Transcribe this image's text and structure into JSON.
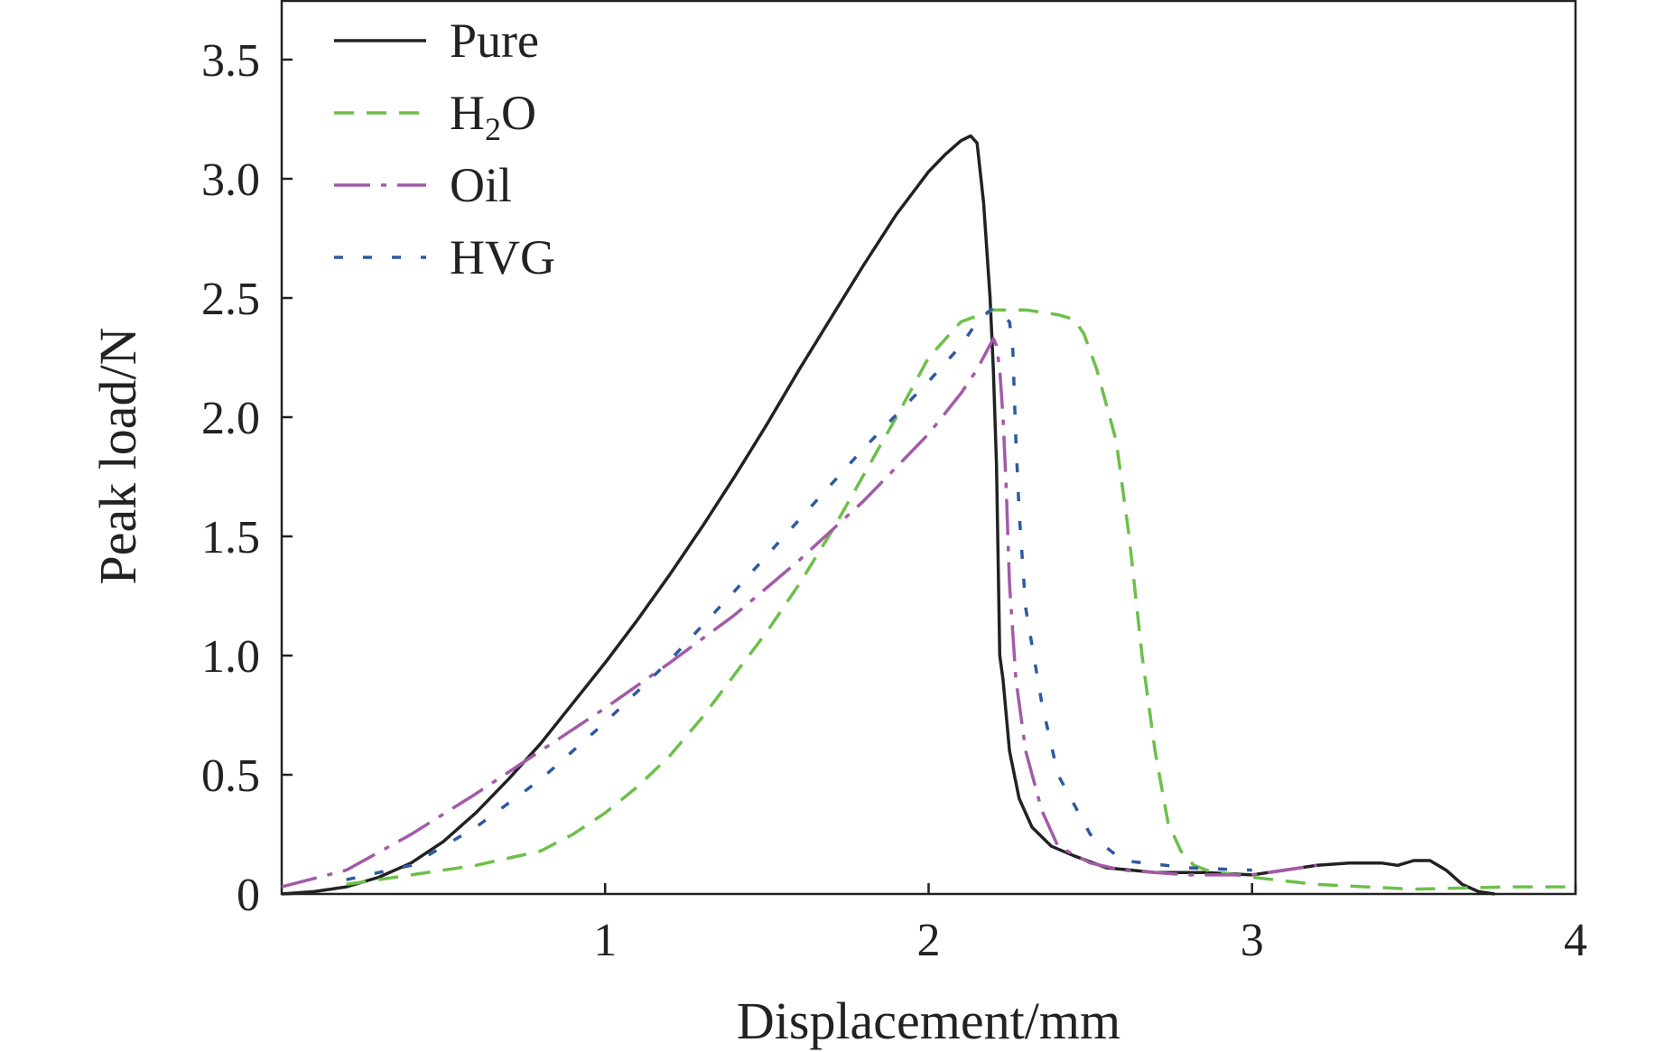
{
  "chart_data": {
    "type": "line",
    "title": "",
    "xlabel": "Displacement/mm",
    "ylabel": "Peak load/N",
    "xlim": [
      0,
      4
    ],
    "ylim": [
      0,
      3.75
    ],
    "xticks": [
      1,
      2,
      3,
      4
    ],
    "xtick_labels": [
      "1",
      "2",
      "3",
      "4"
    ],
    "yticks": [
      0,
      0.5,
      1.0,
      1.5,
      2.0,
      2.5,
      3.0,
      3.5
    ],
    "ytick_labels": [
      "0",
      "0.5",
      "1.0",
      "1.5",
      "2.0",
      "2.5",
      "3.0",
      "3.5"
    ],
    "grid": false,
    "legend_position": "top-left",
    "series": [
      {
        "name": "Pure",
        "legend_label": "Pure",
        "color": "#222222",
        "dash": "solid",
        "x": [
          0.0,
          0.1,
          0.2,
          0.3,
          0.4,
          0.5,
          0.6,
          0.7,
          0.8,
          0.9,
          1.0,
          1.1,
          1.2,
          1.3,
          1.4,
          1.5,
          1.6,
          1.7,
          1.8,
          1.9,
          2.0,
          2.05,
          2.1,
          2.13,
          2.15,
          2.17,
          2.19,
          2.2,
          2.21,
          2.215,
          2.22,
          2.23,
          2.25,
          2.28,
          2.32,
          2.38,
          2.45,
          2.55,
          2.7,
          2.85,
          3.0,
          3.1,
          3.2,
          3.3,
          3.4,
          3.45,
          3.5,
          3.55,
          3.6,
          3.65,
          3.7,
          3.75
        ],
        "y": [
          0.0,
          0.01,
          0.03,
          0.07,
          0.13,
          0.22,
          0.34,
          0.48,
          0.63,
          0.8,
          0.97,
          1.15,
          1.34,
          1.54,
          1.75,
          1.97,
          2.2,
          2.42,
          2.64,
          2.85,
          3.03,
          3.1,
          3.16,
          3.18,
          3.15,
          2.9,
          2.5,
          2.2,
          1.8,
          1.4,
          1.0,
          0.9,
          0.6,
          0.4,
          0.28,
          0.2,
          0.16,
          0.11,
          0.09,
          0.09,
          0.08,
          0.1,
          0.12,
          0.13,
          0.13,
          0.12,
          0.14,
          0.14,
          0.1,
          0.04,
          0.01,
          0.0
        ]
      },
      {
        "name": "H₂O",
        "legend_label": "H",
        "legend_subscript": "2",
        "legend_suffix": "O",
        "color": "#6cc04a",
        "dash": "22,14",
        "x": [
          0.2,
          0.4,
          0.6,
          0.8,
          0.9,
          1.0,
          1.1,
          1.2,
          1.3,
          1.4,
          1.5,
          1.6,
          1.7,
          1.8,
          1.9,
          2.0,
          2.1,
          2.2,
          2.3,
          2.35,
          2.4,
          2.45,
          2.48,
          2.52,
          2.58,
          2.62,
          2.66,
          2.7,
          2.74,
          2.78,
          2.82,
          2.86,
          2.9,
          3.0,
          3.2,
          3.5,
          3.8,
          4.0
        ],
        "y": [
          0.04,
          0.08,
          0.12,
          0.18,
          0.25,
          0.34,
          0.45,
          0.58,
          0.74,
          0.92,
          1.1,
          1.3,
          1.52,
          1.76,
          2.0,
          2.25,
          2.4,
          2.45,
          2.45,
          2.44,
          2.43,
          2.41,
          2.35,
          2.2,
          1.9,
          1.5,
          1.0,
          0.6,
          0.3,
          0.18,
          0.12,
          0.1,
          0.09,
          0.07,
          0.04,
          0.02,
          0.03,
          0.03
        ]
      },
      {
        "name": "Oil",
        "legend_label": "Oil",
        "color": "#a35aa8",
        "dash": "40,12,6,12",
        "x": [
          0.0,
          0.2,
          0.4,
          0.6,
          0.8,
          1.0,
          1.2,
          1.4,
          1.6,
          1.8,
          2.0,
          2.1,
          2.15,
          2.2,
          2.21,
          2.22,
          2.23,
          2.24,
          2.25,
          2.27,
          2.3,
          2.35,
          2.4,
          2.5,
          2.6,
          2.8,
          3.0,
          3.2
        ],
        "y": [
          0.03,
          0.1,
          0.25,
          0.42,
          0.6,
          0.78,
          0.97,
          1.17,
          1.4,
          1.65,
          1.93,
          2.1,
          2.2,
          2.33,
          2.3,
          2.2,
          2.0,
          1.7,
          1.3,
          0.9,
          0.6,
          0.35,
          0.2,
          0.13,
          0.1,
          0.08,
          0.08,
          0.12
        ]
      },
      {
        "name": "HVG",
        "legend_label": "HVG",
        "color": "#2e5aa0",
        "dash": "10,22",
        "x": [
          0.2,
          0.4,
          0.6,
          0.8,
          1.0,
          1.2,
          1.4,
          1.6,
          1.8,
          2.0,
          2.1,
          2.15,
          2.2,
          2.25,
          2.26,
          2.27,
          2.28,
          2.3,
          2.35,
          2.4,
          2.5,
          2.6,
          2.8,
          3.0
        ],
        "y": [
          0.06,
          0.12,
          0.28,
          0.48,
          0.72,
          0.98,
          1.27,
          1.57,
          1.87,
          2.15,
          2.3,
          2.4,
          2.46,
          2.4,
          2.3,
          1.9,
          1.6,
          1.2,
          0.8,
          0.5,
          0.25,
          0.14,
          0.11,
          0.1
        ]
      }
    ]
  }
}
